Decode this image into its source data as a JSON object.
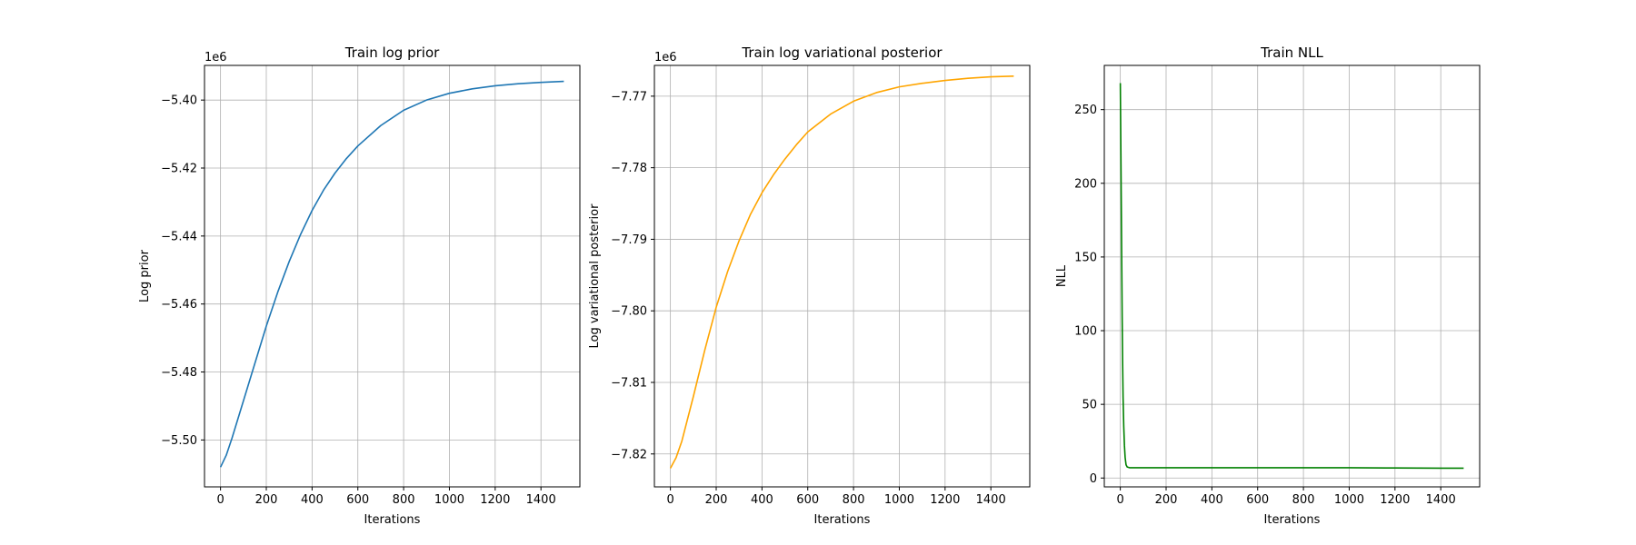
{
  "chart_data": [
    {
      "type": "line",
      "title": "Train log prior",
      "xlabel": "Iterations",
      "ylabel": "Log prior",
      "offset_text": "1e6",
      "xlim": [
        -70,
        1570
      ],
      "ylim": [
        -5.5138,
        -5.3898
      ],
      "xticks": [
        0,
        200,
        400,
        600,
        800,
        1000,
        1200,
        1400
      ],
      "xtick_labels": [
        "0",
        "200",
        "400",
        "600",
        "800",
        "1000",
        "1200",
        "1400"
      ],
      "yticks": [
        -5.5,
        -5.48,
        -5.46,
        -5.44,
        -5.42,
        -5.4
      ],
      "ytick_labels": [
        "−5.50",
        "−5.48",
        "−5.46",
        "−5.44",
        "−5.42",
        "−5.40"
      ],
      "grid": true,
      "series": [
        {
          "color": "#1f77b4",
          "x": [
            0,
            25,
            50,
            100,
            150,
            200,
            250,
            300,
            350,
            400,
            450,
            500,
            550,
            600,
            700,
            800,
            900,
            1000,
            1100,
            1200,
            1300,
            1400,
            1500
          ],
          "y": [
            -5.508,
            -5.5045,
            -5.4995,
            -5.4885,
            -5.4775,
            -5.4665,
            -5.4565,
            -5.4475,
            -5.4395,
            -5.4325,
            -5.4265,
            -5.4215,
            -5.4172,
            -5.4135,
            -5.4075,
            -5.403,
            -5.4,
            -5.398,
            -5.3967,
            -5.3958,
            -5.3952,
            -5.3948,
            -5.3945
          ]
        }
      ]
    },
    {
      "type": "line",
      "title": "Train log variational posterior",
      "xlabel": "Iterations",
      "ylabel": "Log variational posterior",
      "offset_text": "1e6",
      "xlim": [
        -70,
        1570
      ],
      "ylim": [
        -7.8246,
        -7.7657
      ],
      "xticks": [
        0,
        200,
        400,
        600,
        800,
        1000,
        1200,
        1400
      ],
      "xtick_labels": [
        "0",
        "200",
        "400",
        "600",
        "800",
        "1000",
        "1200",
        "1400"
      ],
      "yticks": [
        -7.82,
        -7.81,
        -7.8,
        -7.79,
        -7.78,
        -7.77
      ],
      "ytick_labels": [
        "−7.82",
        "−7.81",
        "−7.80",
        "−7.79",
        "−7.78",
        "−7.77"
      ],
      "grid": true,
      "series": [
        {
          "color": "#ffa500",
          "x": [
            0,
            25,
            50,
            100,
            150,
            200,
            250,
            300,
            350,
            400,
            450,
            500,
            550,
            600,
            700,
            800,
            900,
            1000,
            1100,
            1200,
            1300,
            1400,
            1500
          ],
          "y": [
            -7.822,
            -7.8205,
            -7.8182,
            -7.812,
            -7.8055,
            -7.7995,
            -7.7945,
            -7.7902,
            -7.7865,
            -7.7835,
            -7.781,
            -7.7788,
            -7.7768,
            -7.775,
            -7.7725,
            -7.7707,
            -7.7695,
            -7.7687,
            -7.7682,
            -7.7678,
            -7.7675,
            -7.7673,
            -7.7672
          ]
        }
      ]
    },
    {
      "type": "line",
      "title": "Train NLL",
      "xlabel": "Iterations",
      "ylabel": "NLL",
      "offset_text": "",
      "xlim": [
        -70,
        1570
      ],
      "ylim": [
        -6,
        280
      ],
      "xticks": [
        0,
        200,
        400,
        600,
        800,
        1000,
        1200,
        1400
      ],
      "xtick_labels": [
        "0",
        "200",
        "400",
        "600",
        "800",
        "1000",
        "1200",
        "1400"
      ],
      "yticks": [
        0,
        50,
        100,
        150,
        200,
        250
      ],
      "ytick_labels": [
        "0",
        "50",
        "100",
        "150",
        "200",
        "250"
      ],
      "grid": true,
      "series": [
        {
          "color": "#008000",
          "x": [
            0,
            2,
            4,
            6,
            8,
            10,
            12,
            15,
            18,
            21,
            25,
            30,
            40,
            60,
            100,
            200,
            400,
            600,
            800,
            1000,
            1200,
            1400,
            1500
          ],
          "y": [
            268,
            230,
            190,
            150,
            110,
            80,
            55,
            35,
            22,
            14,
            9,
            7.5,
            7,
            7,
            7,
            7,
            7,
            7,
            7,
            7,
            6.8,
            6.7,
            6.7
          ]
        }
      ]
    }
  ]
}
